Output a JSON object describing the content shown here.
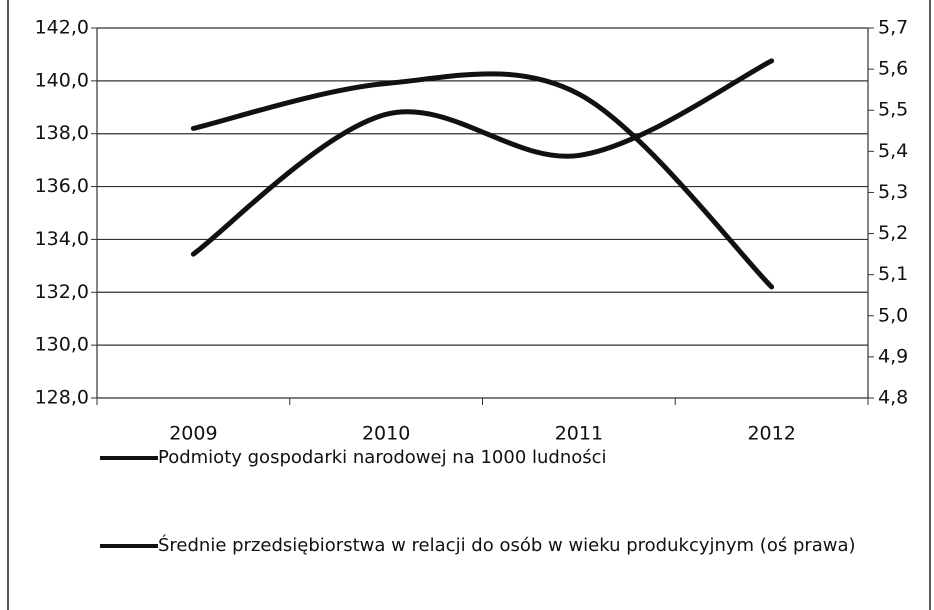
{
  "chart_data": {
    "type": "line",
    "categories": [
      "2009",
      "2010",
      "2011",
      "2012"
    ],
    "series": [
      {
        "name": "Podmioty gospodarki narodowej na 1000 ludności",
        "color": "#111111",
        "values": [
          138.2,
          139.9,
          139.5,
          132.2
        ]
      },
      {
        "name": "Średnie przedsiębiorstwa w relacji do osób w wieku produkcyjnym (oś prawa)",
        "color": "#111111",
        "axis": "y2",
        "values": [
          5.15,
          5.49,
          5.39,
          5.62
        ]
      }
    ],
    "ylim": [
      128,
      142
    ],
    "yticks": [
      {
        "value": 128,
        "label": "128,0"
      },
      {
        "value": 130,
        "label": "130,0"
      },
      {
        "value": 132,
        "label": "132,0"
      },
      {
        "value": 134,
        "label": "134,0"
      },
      {
        "value": 136,
        "label": "136,0"
      },
      {
        "value": 138,
        "label": "138,0"
      },
      {
        "value": 140,
        "label": "140,0"
      },
      {
        "value": 142,
        "label": "142,0"
      }
    ],
    "y2lim": [
      4.8,
      5.7
    ],
    "y2ticks": [
      {
        "value": 4.8,
        "label": "4,8"
      },
      {
        "value": 4.9,
        "label": "4,9"
      },
      {
        "value": 5.0,
        "label": "5,0"
      },
      {
        "value": 5.1,
        "label": "5,1"
      },
      {
        "value": 5.2,
        "label": "5,2"
      },
      {
        "value": 5.3,
        "label": "5,3"
      },
      {
        "value": 5.4,
        "label": "5,4"
      },
      {
        "value": 5.5,
        "label": "5,5"
      },
      {
        "value": 5.6,
        "label": "5,6"
      },
      {
        "value": 5.7,
        "label": "5,7"
      }
    ],
    "grid": true
  }
}
